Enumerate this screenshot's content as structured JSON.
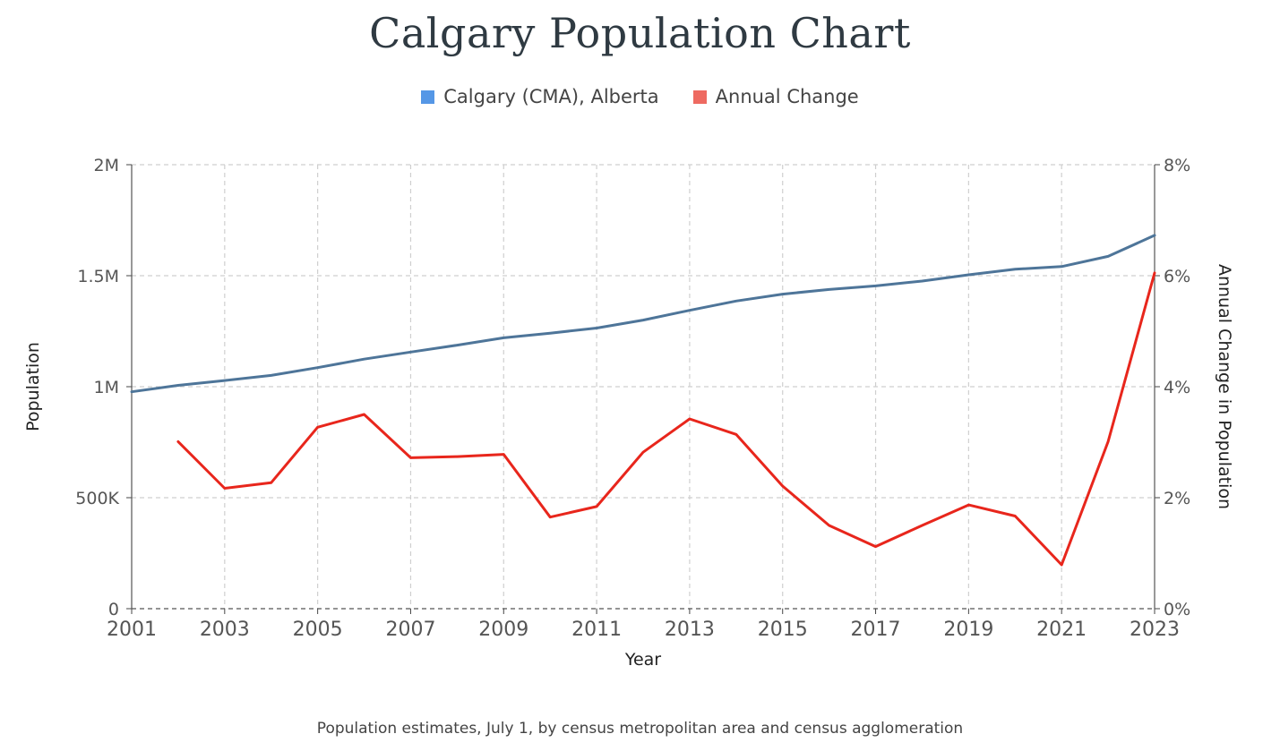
{
  "title": "Calgary Population Chart",
  "legend": {
    "population_label": "Calgary (CMA), Alberta",
    "change_label": "Annual Change"
  },
  "source_note": "Population estimates, July 1, by census metropolitan area and census agglomeration",
  "colors": {
    "population_line": "#4e7599",
    "change_line": "#e8261c",
    "population_swatch": "#5597e6",
    "change_swatch": "#ee6a61",
    "grid": "#cfcfcf"
  },
  "chart_data": {
    "type": "line",
    "title": "Calgary Population Chart",
    "xlabel": "Year",
    "ylabel": "Population",
    "y2label": "Annual Change in Population",
    "xlim": [
      2001,
      2023
    ],
    "ylim": [
      0,
      2000000
    ],
    "y2lim": [
      0,
      8
    ],
    "grid": true,
    "legend_position": "top-center",
    "x_ticks": [
      "2001",
      "2003",
      "2005",
      "2007",
      "2009",
      "2011",
      "2013",
      "2015",
      "2017",
      "2019",
      "2021",
      "2023"
    ],
    "y_ticks": [
      {
        "value": 0,
        "label": "0"
      },
      {
        "value": 500000,
        "label": "500K"
      },
      {
        "value": 1000000,
        "label": "1M"
      },
      {
        "value": 1500000,
        "label": "1.5M"
      },
      {
        "value": 2000000,
        "label": "2M"
      }
    ],
    "y2_ticks": [
      {
        "value": 0,
        "label": "0%"
      },
      {
        "value": 2,
        "label": "2%"
      },
      {
        "value": 4,
        "label": "4%"
      },
      {
        "value": 6,
        "label": "6%"
      },
      {
        "value": 8,
        "label": "8%"
      }
    ],
    "series": [
      {
        "name": "Calgary (CMA), Alberta",
        "axis": "left",
        "x": [
          2001,
          2002,
          2003,
          2004,
          2005,
          2006,
          2007,
          2008,
          2009,
          2010,
          2011,
          2012,
          2013,
          2014,
          2015,
          2016,
          2017,
          2018,
          2019,
          2020,
          2021,
          2022,
          2023
        ],
        "values": [
          977000,
          1006000,
          1028000,
          1051000,
          1086000,
          1124000,
          1156000,
          1187000,
          1220000,
          1241000,
          1264000,
          1300000,
          1344000,
          1386000,
          1417000,
          1438000,
          1454000,
          1476000,
          1504000,
          1529000,
          1541000,
          1587000,
          1682000
        ]
      },
      {
        "name": "Annual Change",
        "axis": "right",
        "x": [
          2002,
          2003,
          2004,
          2005,
          2006,
          2007,
          2008,
          2009,
          2010,
          2011,
          2012,
          2013,
          2014,
          2015,
          2016,
          2017,
          2018,
          2019,
          2020,
          2021,
          2022,
          2023
        ],
        "values": [
          3.01,
          2.17,
          2.27,
          3.27,
          3.5,
          2.72,
          2.74,
          2.78,
          1.65,
          1.84,
          2.82,
          3.42,
          3.14,
          2.21,
          1.5,
          1.12,
          1.5,
          1.87,
          1.67,
          0.79,
          3.01,
          6.05
        ]
      }
    ]
  }
}
